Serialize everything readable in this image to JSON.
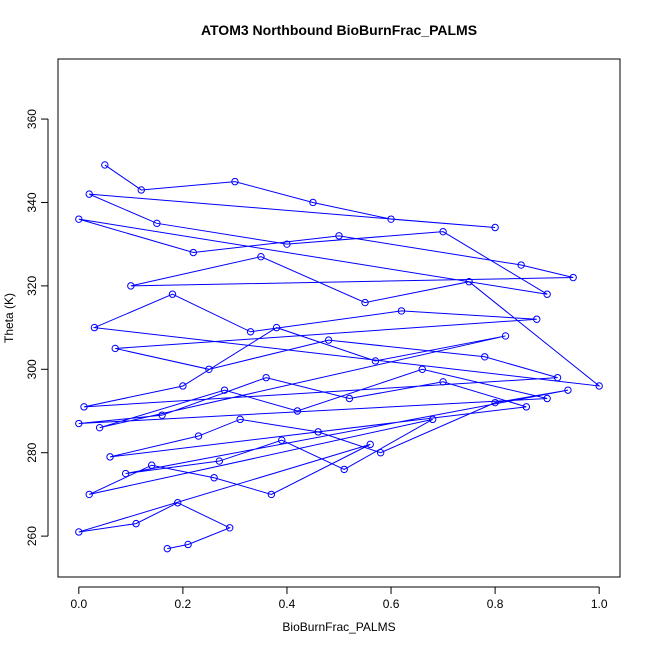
{
  "chart_data": {
    "type": "line",
    "title": "ATOM3 Northbound BioBurnFrac_PALMS",
    "x_label": "BioBurnFrac_PALMS",
    "y_label": "Theta (K)",
    "color": "#0000ff",
    "x": [
      0.05,
      0.12,
      0.3,
      0.45,
      0.6,
      0.8,
      0.02,
      0.15,
      0.4,
      0.7,
      0.9,
      0.0,
      0.22,
      0.5,
      0.85,
      0.95,
      0.1,
      0.35,
      0.55,
      0.75,
      1.0,
      0.03,
      0.18,
      0.33,
      0.62,
      0.88,
      0.07,
      0.25,
      0.48,
      0.78,
      0.92,
      0.01,
      0.2,
      0.38,
      0.57,
      0.82,
      0.04,
      0.28,
      0.42,
      0.66,
      0.9,
      0.0,
      0.16,
      0.36,
      0.52,
      0.7,
      0.86,
      0.06,
      0.23,
      0.31,
      0.46,
      0.58,
      0.8,
      0.94,
      0.09,
      0.27,
      0.39,
      0.51,
      0.68,
      0.02,
      0.14,
      0.26,
      0.37,
      0.56,
      0.0,
      0.11,
      0.19,
      0.29,
      0.21,
      0.17
    ],
    "values": [
      349,
      343,
      345,
      340,
      336,
      334,
      342,
      335,
      330,
      333,
      318,
      336,
      328,
      332,
      325,
      322,
      320,
      327,
      316,
      321,
      296,
      310,
      318,
      309,
      314,
      312,
      305,
      300,
      307,
      303,
      298,
      291,
      296,
      310,
      302,
      308,
      286,
      295,
      290,
      300,
      293,
      287,
      289,
      298,
      293,
      297,
      291,
      279,
      284,
      288,
      285,
      280,
      292,
      295,
      275,
      278,
      283,
      276,
      288,
      270,
      277,
      274,
      270,
      282,
      261,
      263,
      268,
      262,
      258,
      257
    ],
    "xlim": [
      -0.04,
      1.04
    ],
    "ylim": [
      250.2,
      374.4
    ],
    "xticks": [
      {
        "value": 0,
        "label": "0.0"
      },
      0.2,
      0.4,
      0.6,
      0.8,
      {
        "value": 1,
        "label": "1.0"
      }
    ],
    "yticks": [
      260,
      280,
      300,
      320,
      340,
      360
    ]
  }
}
